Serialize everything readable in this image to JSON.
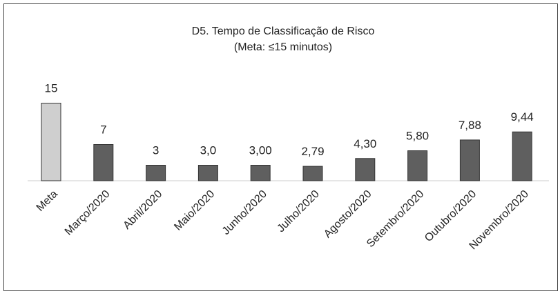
{
  "chart_data": {
    "type": "bar",
    "title": "D5. Tempo de Classificação de Risco",
    "subtitle": "(Meta: ≤15 minutos)",
    "categories": [
      "Meta",
      "Março/2020",
      "Abril/2020",
      "Maio/2020",
      "Junho/2020",
      "Julho/2020",
      "Agosto/2020",
      "Setembro/2020",
      "Outubro/2020",
      "Novembro/2020"
    ],
    "values": [
      15,
      7,
      3,
      3.0,
      3.0,
      2.79,
      4.3,
      5.8,
      7.88,
      9.44
    ],
    "value_labels": [
      "15",
      "7",
      "3",
      "3,0",
      "3,00",
      "2,79",
      "4,30",
      "5,80",
      "7,88",
      "9,44"
    ],
    "colors": [
      "#cfcfcf",
      "#5f5f5f",
      "#5f5f5f",
      "#5f5f5f",
      "#5f5f5f",
      "#5f5f5f",
      "#5f5f5f",
      "#5f5f5f",
      "#5f5f5f",
      "#5f5f5f"
    ]
  }
}
